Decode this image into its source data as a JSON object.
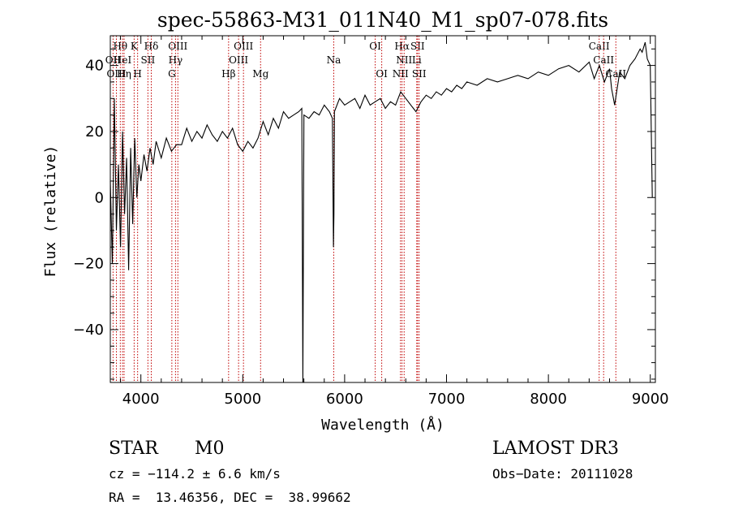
{
  "chart_data": {
    "type": "line",
    "title": "spec-55863-M31_011N40_M1_sp07-078.fits",
    "xlabel": "Wavelength (Å)",
    "ylabel": "Flux (relative)",
    "xlim": [
      3700,
      9050
    ],
    "ylim": [
      -56,
      49
    ],
    "xticks": [
      4000,
      5000,
      6000,
      7000,
      8000,
      9000
    ],
    "yticks": [
      -40,
      -20,
      0,
      20,
      40
    ],
    "series": [
      {
        "name": "flux",
        "x": [
          3700,
          3720,
          3740,
          3760,
          3780,
          3800,
          3820,
          3840,
          3860,
          3880,
          3900,
          3920,
          3940,
          3960,
          3980,
          4000,
          4030,
          4060,
          4090,
          4120,
          4150,
          4200,
          4250,
          4300,
          4350,
          4400,
          4450,
          4500,
          4550,
          4600,
          4650,
          4700,
          4750,
          4800,
          4850,
          4900,
          4950,
          5000,
          5050,
          5100,
          5150,
          5200,
          5250,
          5300,
          5350,
          5400,
          5450,
          5500,
          5550,
          5580,
          5590,
          5600,
          5650,
          5700,
          5750,
          5800,
          5850,
          5880,
          5890,
          5895,
          5900,
          5950,
          6000,
          6050,
          6100,
          6150,
          6200,
          6250,
          6300,
          6350,
          6400,
          6450,
          6500,
          6550,
          6600,
          6650,
          6700,
          6750,
          6800,
          6850,
          6900,
          6950,
          7000,
          7050,
          7100,
          7150,
          7200,
          7300,
          7400,
          7500,
          7600,
          7700,
          7800,
          7900,
          8000,
          8100,
          8200,
          8300,
          8400,
          8450,
          8500,
          8550,
          8600,
          8620,
          8650,
          8700,
          8750,
          8800,
          8850,
          8900,
          8920,
          8950,
          8970,
          9000,
          9020
        ],
        "y": [
          5,
          -20,
          30,
          -10,
          10,
          -15,
          20,
          -5,
          12,
          -22,
          15,
          -8,
          18,
          0,
          10,
          5,
          13,
          8,
          15,
          10,
          17,
          12,
          18,
          14,
          16,
          16,
          21,
          17,
          20,
          18,
          22,
          19,
          17,
          20,
          18,
          21,
          16,
          14,
          17,
          15,
          18,
          23,
          19,
          24,
          21,
          26,
          24,
          25,
          26,
          27,
          -56,
          25,
          24,
          26,
          25,
          28,
          26,
          24,
          -15,
          -5,
          26,
          30,
          28,
          29,
          30,
          27,
          31,
          28,
          29,
          30,
          27,
          29,
          28,
          32,
          30,
          28,
          26,
          29,
          31,
          30,
          32,
          31,
          33,
          32,
          34,
          33,
          35,
          34,
          36,
          35,
          36,
          37,
          36,
          38,
          37,
          39,
          40,
          38,
          41,
          36,
          40,
          35,
          39,
          33,
          28,
          38,
          36,
          40,
          42,
          45,
          44,
          47,
          42,
          40,
          0
        ]
      }
    ],
    "line_markers": [
      {
        "label": "Hθ",
        "wavelength": 3798,
        "row": 1
      },
      {
        "label": "OII",
        "wavelength": 3727,
        "row": 2
      },
      {
        "label": "OIII",
        "wavelength": 3760,
        "row": 3
      },
      {
        "label": "HeI",
        "wavelength": 3820,
        "row": 2
      },
      {
        "label": "Hη",
        "wavelength": 3835,
        "row": 3
      },
      {
        "label": "K",
        "wavelength": 3934,
        "row": 1
      },
      {
        "label": "SII",
        "wavelength": 4069,
        "row": 2
      },
      {
        "label": "H",
        "wavelength": 3968,
        "row": 3
      },
      {
        "label": "Hδ",
        "wavelength": 4102,
        "row": 1
      },
      {
        "label": "OIII",
        "wavelength": 4363,
        "row": 1
      },
      {
        "label": "Hγ",
        "wavelength": 4340,
        "row": 2
      },
      {
        "label": "G",
        "wavelength": 4304,
        "row": 3
      },
      {
        "label": "Hβ",
        "wavelength": 4861,
        "row": 3
      },
      {
        "label": "OIII",
        "wavelength": 5007,
        "row": 1
      },
      {
        "label": "OIII",
        "wavelength": 4959,
        "row": 2
      },
      {
        "label": "Mg",
        "wavelength": 5175,
        "row": 3
      },
      {
        "label": "Na",
        "wavelength": 5893,
        "row": 2
      },
      {
        "label": "OI",
        "wavelength": 6300,
        "row": 1
      },
      {
        "label": "OI",
        "wavelength": 6364,
        "row": 3
      },
      {
        "label": "Hα",
        "wavelength": 6563,
        "row": 1
      },
      {
        "label": "SII",
        "wavelength": 6716,
        "row": 1
      },
      {
        "label": "NII",
        "wavelength": 6584,
        "row": 2
      },
      {
        "label": "Li",
        "wavelength": 6708,
        "row": 2
      },
      {
        "label": "NII",
        "wavelength": 6548,
        "row": 3
      },
      {
        "label": "SII",
        "wavelength": 6731,
        "row": 3
      },
      {
        "label": "CaII",
        "wavelength": 8498,
        "row": 1
      },
      {
        "label": "CaII",
        "wavelength": 8542,
        "row": 2
      },
      {
        "label": "CaII",
        "wavelength": 8662,
        "row": 3
      }
    ]
  },
  "footer": {
    "class_label": "STAR",
    "subclass_label": "M0",
    "survey": "LAMOST DR3",
    "cz_line": "cz = −114.2 ± 6.6 km/s",
    "obs_date": "Obs−Date: 20111028",
    "coords": "RA =  13.46356, DEC =  38.99662"
  },
  "colors": {
    "axis": "#000000",
    "spectrum": "#000000",
    "marker": "#c00000"
  }
}
